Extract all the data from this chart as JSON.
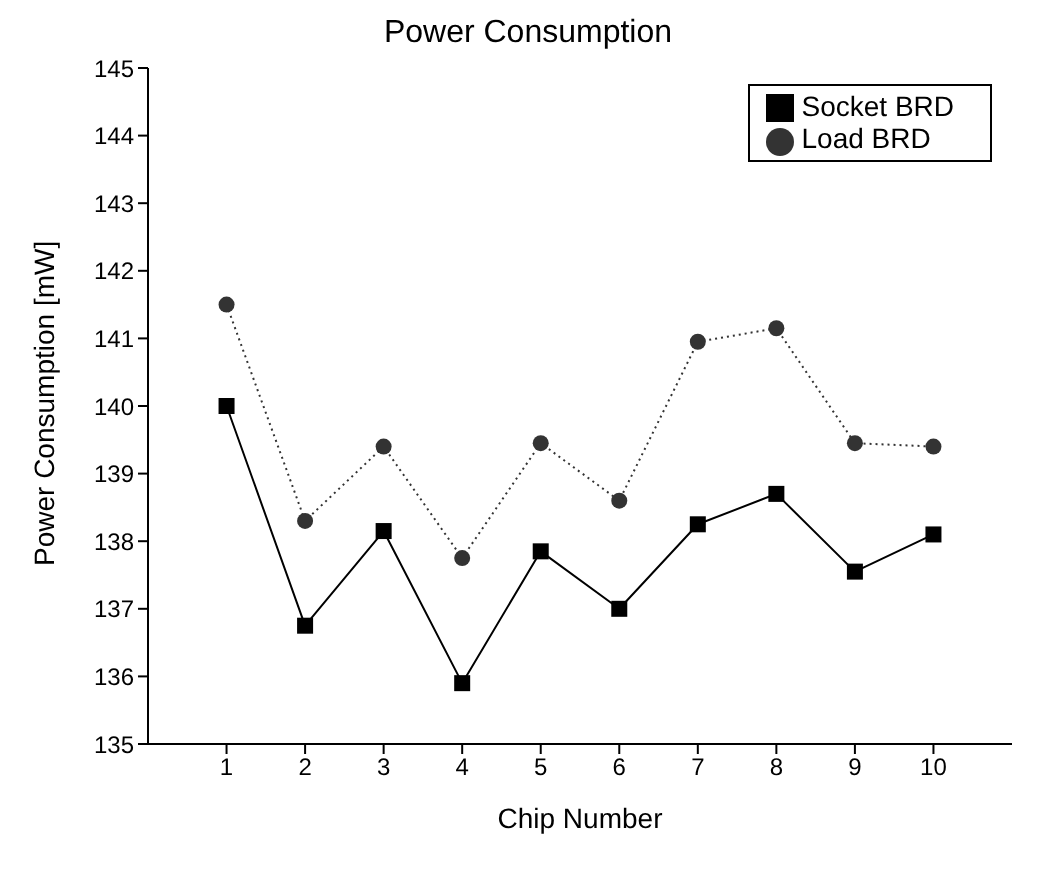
{
  "chart_data": {
    "type": "line",
    "title": "Power Consumption",
    "xlabel": "Chip Number",
    "ylabel": "Power Consumption [mW]",
    "x": [
      1,
      2,
      3,
      4,
      5,
      6,
      7,
      8,
      9,
      10
    ],
    "xlim": [
      0,
      11
    ],
    "xticks": [
      1,
      2,
      3,
      4,
      5,
      6,
      7,
      8,
      9,
      10
    ],
    "ylim": [
      135,
      145
    ],
    "yticks": [
      135,
      136,
      137,
      138,
      139,
      140,
      141,
      142,
      143,
      144,
      145
    ],
    "grid": false,
    "legend": "top right",
    "series": [
      {
        "name": "Socket BRD",
        "color": "#000000",
        "marker": "square",
        "line_style": "solid",
        "values": [
          140.0,
          136.75,
          138.15,
          135.9,
          137.85,
          137.0,
          138.25,
          138.7,
          137.55,
          138.1
        ]
      },
      {
        "name": "Load BRD",
        "color": "#333333",
        "marker": "circle",
        "line_style": "dotted",
        "values": [
          141.5,
          138.3,
          139.4,
          137.75,
          139.45,
          138.6,
          140.95,
          141.15,
          139.45,
          139.4
        ]
      }
    ]
  }
}
